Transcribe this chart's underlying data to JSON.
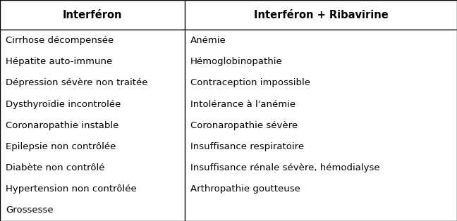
{
  "col1_header": "Interféron",
  "col2_header": "Interféron + Ribavirine",
  "col1_items": [
    "Cirrhose décompensée",
    "Hépatite auto-immune",
    "Dépression sévère non traitée",
    "Dysthyroïdie incontrolée",
    "Coronaropathie instable",
    "Epilepsie non contrôlée",
    "Diabète non contrôlé",
    "Hypertension non contrôlée",
    "Grossesse"
  ],
  "col2_items": [
    "Anémie",
    "Hémoglobinopathie",
    "Contraception impossible",
    "Intolérance à l'anémie",
    "Coronaropathie sévère",
    "Insuffisance respiratoire",
    "Insuffisance rénale sévère, hémodialyse",
    "Arthropathie goutteuse",
    ""
  ],
  "bg_color": "#ffffff",
  "border_color": "#000000",
  "header_fontsize": 10.5,
  "body_fontsize": 9.5,
  "col_split": 0.405
}
